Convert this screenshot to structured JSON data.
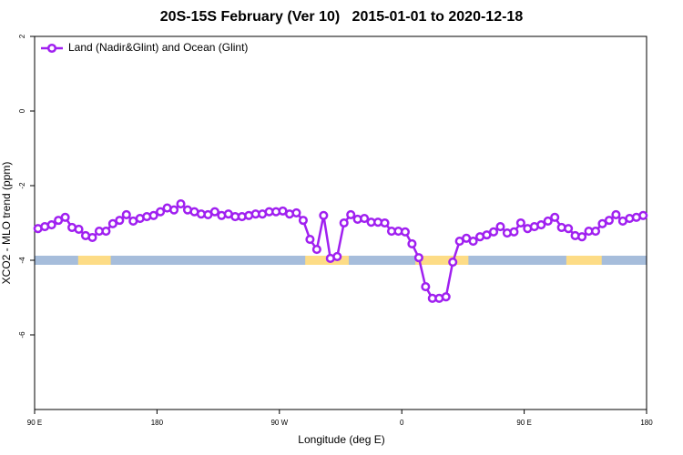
{
  "chart_data": {
    "type": "line",
    "title": "20S-15S February (Ver 10)   2015-01-01 to 2020-12-18",
    "xlabel": "Longitude (deg E)",
    "ylabel": "XCO2 - MLO trend (ppm)",
    "legend": "top-left",
    "grid": false,
    "xlim": [
      90,
      540
    ],
    "xticks": [
      {
        "value": 90,
        "label": "90 E"
      },
      {
        "value": 180,
        "label": "180"
      },
      {
        "value": 270,
        "label": "90 W"
      },
      {
        "value": 360,
        "label": "0"
      },
      {
        "value": 450,
        "label": "90 E"
      },
      {
        "value": 540,
        "label": "180"
      }
    ],
    "ylim": [
      -8,
      2
    ],
    "yticks": [
      2,
      0,
      -2,
      -4,
      -6
    ],
    "x": [
      92.5,
      97.5,
      102.5,
      107.5,
      112.5,
      117.5,
      122.5,
      127.5,
      132.5,
      137.5,
      142.5,
      147.5,
      152.5,
      157.5,
      162.5,
      167.5,
      172.5,
      177.5,
      182.5,
      187.5,
      192.5,
      197.5,
      202.5,
      207.5,
      212.5,
      217.5,
      222.5,
      227.5,
      232.5,
      237.5,
      242.5,
      247.5,
      252.5,
      257.5,
      262.5,
      267.5,
      272.5,
      277.5,
      282.5,
      287.5,
      292.5,
      297.5,
      302.5,
      307.5,
      312.5,
      317.5,
      322.5,
      327.5,
      332.5,
      337.5,
      342.5,
      347.5,
      352.5,
      357.5,
      362.5,
      367.5,
      372.5,
      377.5,
      382.5,
      387.5,
      392.5,
      397.5,
      402.5,
      407.5,
      412.5,
      417.5,
      422.5,
      427.5,
      432.5,
      437.5,
      442.5,
      447.5,
      452.5,
      457.5,
      462.5,
      467.5,
      472.5,
      477.5,
      482.5,
      487.5,
      492.5,
      497.5,
      502.5,
      507.5,
      512.5,
      517.5,
      522.5,
      527.5,
      532.5,
      537.5
    ],
    "series": [
      {
        "name": "Land (Nadir&Glint) and Ocean (Glint)",
        "color": "#a020f0",
        "values": [
          -3.15,
          -3.1,
          -3.05,
          -2.93,
          -2.85,
          -3.12,
          -3.17,
          -3.34,
          -3.39,
          -3.22,
          -3.22,
          -3.02,
          -2.93,
          -2.78,
          -2.95,
          -2.88,
          -2.83,
          -2.8,
          -2.7,
          -2.6,
          -2.65,
          -2.49,
          -2.65,
          -2.7,
          -2.76,
          -2.78,
          -2.7,
          -2.8,
          -2.76,
          -2.83,
          -2.83,
          -2.8,
          -2.76,
          -2.76,
          -2.7,
          -2.7,
          -2.68,
          -2.76,
          -2.73,
          -2.93,
          -3.44,
          -3.71,
          -2.8,
          -3.95,
          -3.9,
          -3.0,
          -2.78,
          -2.9,
          -2.88,
          -2.98,
          -2.98,
          -3.0,
          -3.22,
          -3.22,
          -3.24,
          -3.56,
          -3.93,
          -4.71,
          -5.02,
          -5.02,
          -4.98,
          -4.05,
          -3.49,
          -3.41,
          -3.49,
          -3.37,
          -3.32,
          -3.24,
          -3.1,
          -3.27,
          -3.24,
          -3.0,
          -3.15,
          -3.1,
          -3.05,
          -2.95,
          -2.85,
          -3.12,
          -3.15,
          -3.34,
          -3.37,
          -3.22,
          -3.22,
          -3.02,
          -2.93,
          -2.78,
          -2.95,
          -2.88,
          -2.85,
          -2.8
        ]
      }
    ],
    "band": {
      "y": -4,
      "ocean_color": "#a6bddb",
      "land_color": "#fddc86",
      "land": [
        [
          122,
          146
        ],
        [
          289,
          321
        ],
        [
          370,
          409
        ],
        [
          481,
          507
        ]
      ]
    }
  }
}
